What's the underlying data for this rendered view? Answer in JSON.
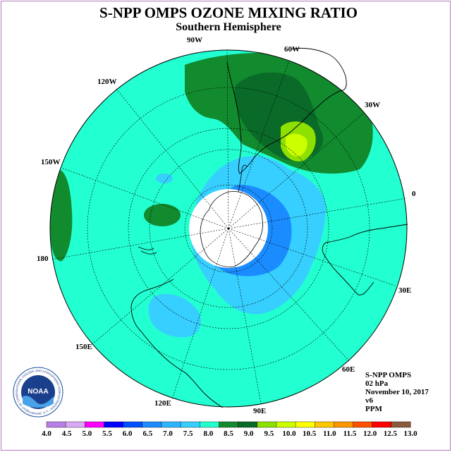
{
  "title": "S-NPP OMPS OZONE MIXING RATIO",
  "subtitle": "Southern Hemisphere",
  "longitude_labels": {
    "w90": "90W",
    "w60": "60W",
    "w30": "30W",
    "w120": "120W",
    "w150": "150W",
    "e0": "0",
    "w180": "180",
    "e30": "30E",
    "e60": "60E",
    "e90": "90E",
    "e120": "120E",
    "e150": "150E"
  },
  "info": {
    "product": "S-NPP OMPS",
    "level": "02 hPa",
    "date": "November 10, 2017",
    "version": "v6",
    "units": "PPM"
  },
  "logo": {
    "text": "NOAA",
    "ring_text": "NATIONAL OCEANIC AND ATMOSPHERIC ADMINISTRATION · U.S. DEPARTMENT OF COMMERCE"
  },
  "colorbar": {
    "labels": [
      "4.0",
      "4.5",
      "5.0",
      "5.5",
      "6.0",
      "6.5",
      "7.0",
      "7.5",
      "8.0",
      "8.5",
      "9.0",
      "9.5",
      "10.0",
      "10.5",
      "11.0",
      "11.5",
      "12.0",
      "12.5",
      "13.0"
    ],
    "colors": [
      "#b97fe6",
      "#dba9f5",
      "#ff00ff",
      "#0000ff",
      "#0050ff",
      "#1b8cff",
      "#2eb4ff",
      "#37cfff",
      "#22ffcc",
      "#128a2e",
      "#0a6a28",
      "#8ee000",
      "#ccff00",
      "#ffff00",
      "#ffc800",
      "#ff9600",
      "#ff5000",
      "#ff0000",
      "#8b5a3c"
    ]
  },
  "map_colors": {
    "background": "#22ffd0",
    "polar_void": "#ffffff",
    "levels": {
      "light_blue": "#37cfff",
      "medium_blue": "#1b8cff",
      "green": "#128a2e",
      "dark_green": "#0a6a28",
      "yellow_green": "#8ee000",
      "yellow": "#ccff00"
    }
  }
}
